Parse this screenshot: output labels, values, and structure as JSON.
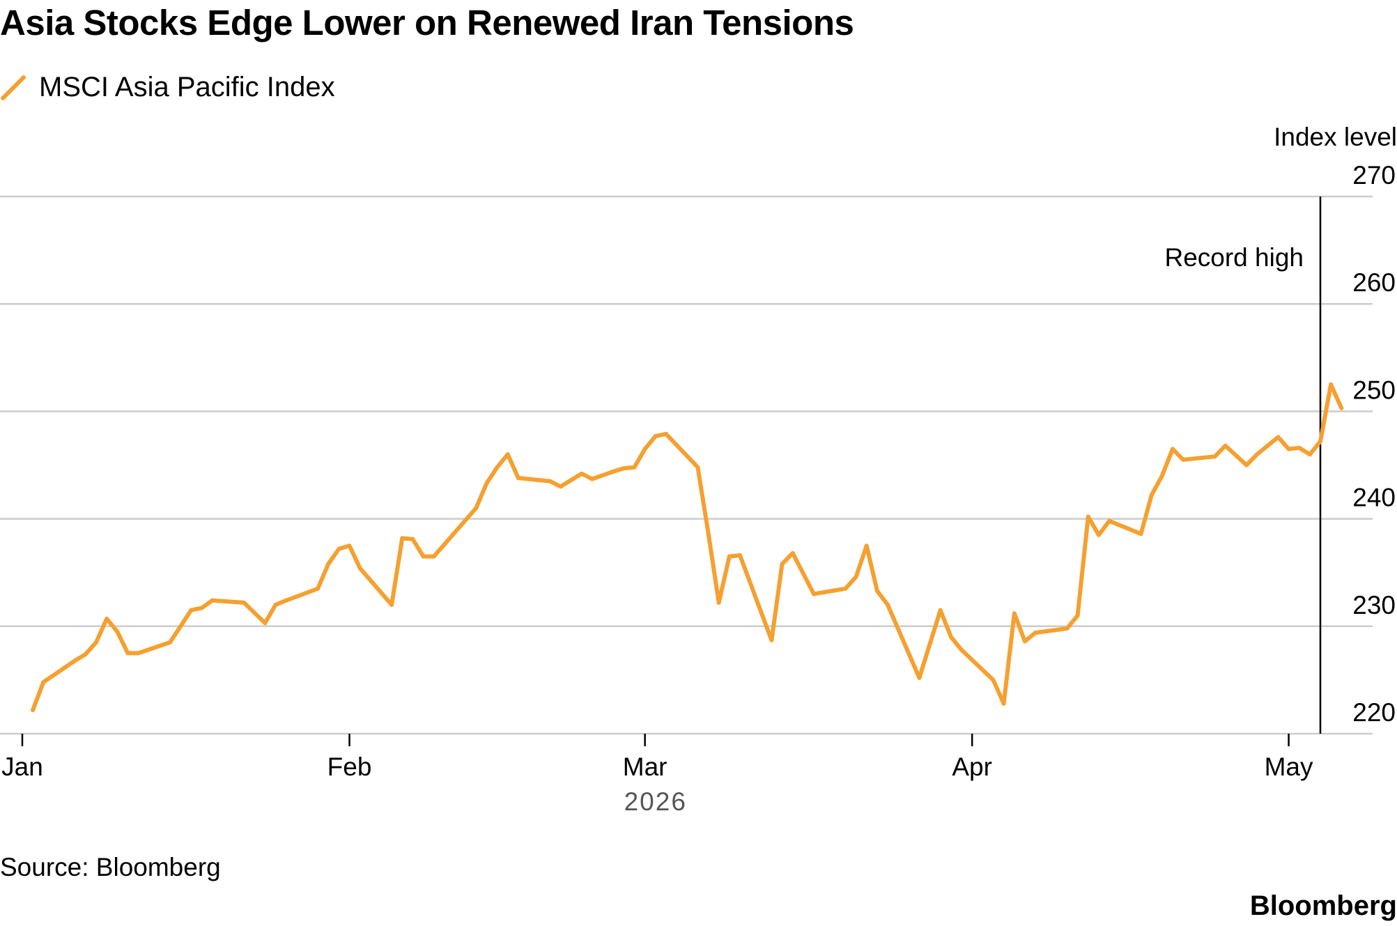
{
  "title": "Asia Stocks Edge Lower on Renewed Iran Tensions",
  "legend": {
    "label": "MSCI Asia Pacific Index",
    "color": "#F5A030"
  },
  "source": "Source: Bloomberg",
  "logo": "Bloomberg",
  "colors": {
    "line": "#F5A030",
    "grid": "#cccccc",
    "axis": "#000000"
  },
  "chart_data": {
    "type": "line",
    "title": "Asia Stocks Edge Lower on Renewed Iran Tensions",
    "ylabel": "Index level",
    "xlabel": "2026",
    "ylim": [
      220,
      270
    ],
    "yticks": [
      220,
      230,
      240,
      250,
      260,
      270
    ],
    "xticks": [
      {
        "label": "Jan",
        "date": "2026-01-01"
      },
      {
        "label": "Feb",
        "date": "2026-02-01"
      },
      {
        "label": "Mar",
        "date": "2026-03-01"
      },
      {
        "label": "Apr",
        "date": "2026-04-01"
      },
      {
        "label": "May",
        "date": "2026-05-01"
      }
    ],
    "x_range": [
      "2026-01-01",
      "2026-05-04"
    ],
    "grid": true,
    "legend_position": "top-left",
    "annotations": [
      {
        "text": "Record high",
        "date": "2026-05-04",
        "value": 262.5,
        "type": "vertical-line"
      }
    ],
    "series": [
      {
        "name": "MSCI Asia Pacific Index",
        "color": "#F5A030",
        "points": [
          [
            "2026-01-02",
            222.2
          ],
          [
            "2026-01-03",
            224.8
          ],
          [
            "2026-01-06",
            226.8
          ],
          [
            "2026-01-07",
            227.4
          ],
          [
            "2026-01-08",
            228.5
          ],
          [
            "2026-01-09",
            230.7
          ],
          [
            "2026-01-10",
            229.5
          ],
          [
            "2026-01-11",
            227.5
          ],
          [
            "2026-01-12",
            227.5
          ],
          [
            "2026-01-15",
            228.5
          ],
          [
            "2026-01-17",
            231.5
          ],
          [
            "2026-01-18",
            231.7
          ],
          [
            "2026-01-19",
            232.4
          ],
          [
            "2026-01-22",
            232.2
          ],
          [
            "2026-01-24",
            230.3
          ],
          [
            "2026-01-25",
            232.0
          ],
          [
            "2026-01-26",
            232.4
          ],
          [
            "2026-01-29",
            233.5
          ],
          [
            "2026-01-30",
            235.8
          ],
          [
            "2026-01-31",
            237.2
          ],
          [
            "2026-02-01",
            237.5
          ],
          [
            "2026-02-02",
            235.4
          ],
          [
            "2026-02-05",
            232.0
          ],
          [
            "2026-02-06",
            238.2
          ],
          [
            "2026-02-07",
            238.1
          ],
          [
            "2026-02-08",
            236.5
          ],
          [
            "2026-02-09",
            236.5
          ],
          [
            "2026-02-13",
            241.0
          ],
          [
            "2026-02-14",
            243.3
          ],
          [
            "2026-02-15",
            244.8
          ],
          [
            "2026-02-16",
            246.0
          ],
          [
            "2026-02-17",
            243.8
          ],
          [
            "2026-02-20",
            243.5
          ],
          [
            "2026-02-21",
            243.0
          ],
          [
            "2026-02-23",
            244.2
          ],
          [
            "2026-02-24",
            243.7
          ],
          [
            "2026-02-26",
            244.4
          ],
          [
            "2026-02-27",
            244.7
          ],
          [
            "2026-02-28",
            244.8
          ],
          [
            "2026-03-01",
            246.5
          ],
          [
            "2026-03-02",
            247.7
          ],
          [
            "2026-03-03",
            247.9
          ],
          [
            "2026-03-06",
            244.8
          ],
          [
            "2026-03-07",
            238.7
          ],
          [
            "2026-03-08",
            232.2
          ],
          [
            "2026-03-09",
            236.5
          ],
          [
            "2026-03-10",
            236.6
          ],
          [
            "2026-03-13",
            228.7
          ],
          [
            "2026-03-14",
            235.8
          ],
          [
            "2026-03-15",
            236.8
          ],
          [
            "2026-03-17",
            233.0
          ],
          [
            "2026-03-20",
            233.5
          ],
          [
            "2026-03-21",
            234.6
          ],
          [
            "2026-03-22",
            237.5
          ],
          [
            "2026-03-23",
            233.3
          ],
          [
            "2026-03-24",
            232.0
          ],
          [
            "2026-03-27",
            225.2
          ],
          [
            "2026-03-29",
            231.5
          ],
          [
            "2026-03-30",
            229.0
          ],
          [
            "2026-03-31",
            227.8
          ],
          [
            "2026-04-03",
            225.0
          ],
          [
            "2026-04-04",
            222.8
          ],
          [
            "2026-04-05",
            231.2
          ],
          [
            "2026-04-06",
            228.6
          ],
          [
            "2026-04-07",
            229.4
          ],
          [
            "2026-04-10",
            229.8
          ],
          [
            "2026-04-11",
            231.0
          ],
          [
            "2026-04-12",
            240.2
          ],
          [
            "2026-04-13",
            238.5
          ],
          [
            "2026-04-14",
            239.8
          ],
          [
            "2026-04-17",
            238.6
          ],
          [
            "2026-04-18",
            242.2
          ],
          [
            "2026-04-19",
            244.0
          ],
          [
            "2026-04-20",
            246.5
          ],
          [
            "2026-04-21",
            245.5
          ],
          [
            "2026-04-24",
            245.8
          ],
          [
            "2026-04-25",
            246.8
          ],
          [
            "2026-04-27",
            245.0
          ],
          [
            "2026-04-28",
            246.0
          ],
          [
            "2026-04-29",
            246.8
          ],
          [
            "2026-04-30",
            247.6
          ],
          [
            "2026-05-01",
            246.5
          ],
          [
            "2026-05-02",
            246.6
          ],
          [
            "2026-05-03",
            246.0
          ],
          [
            "2026-05-04",
            247.2
          ],
          [
            "2026-05-05",
            252.5
          ],
          [
            "2026-05-06",
            250.3
          ]
        ]
      }
    ]
  }
}
